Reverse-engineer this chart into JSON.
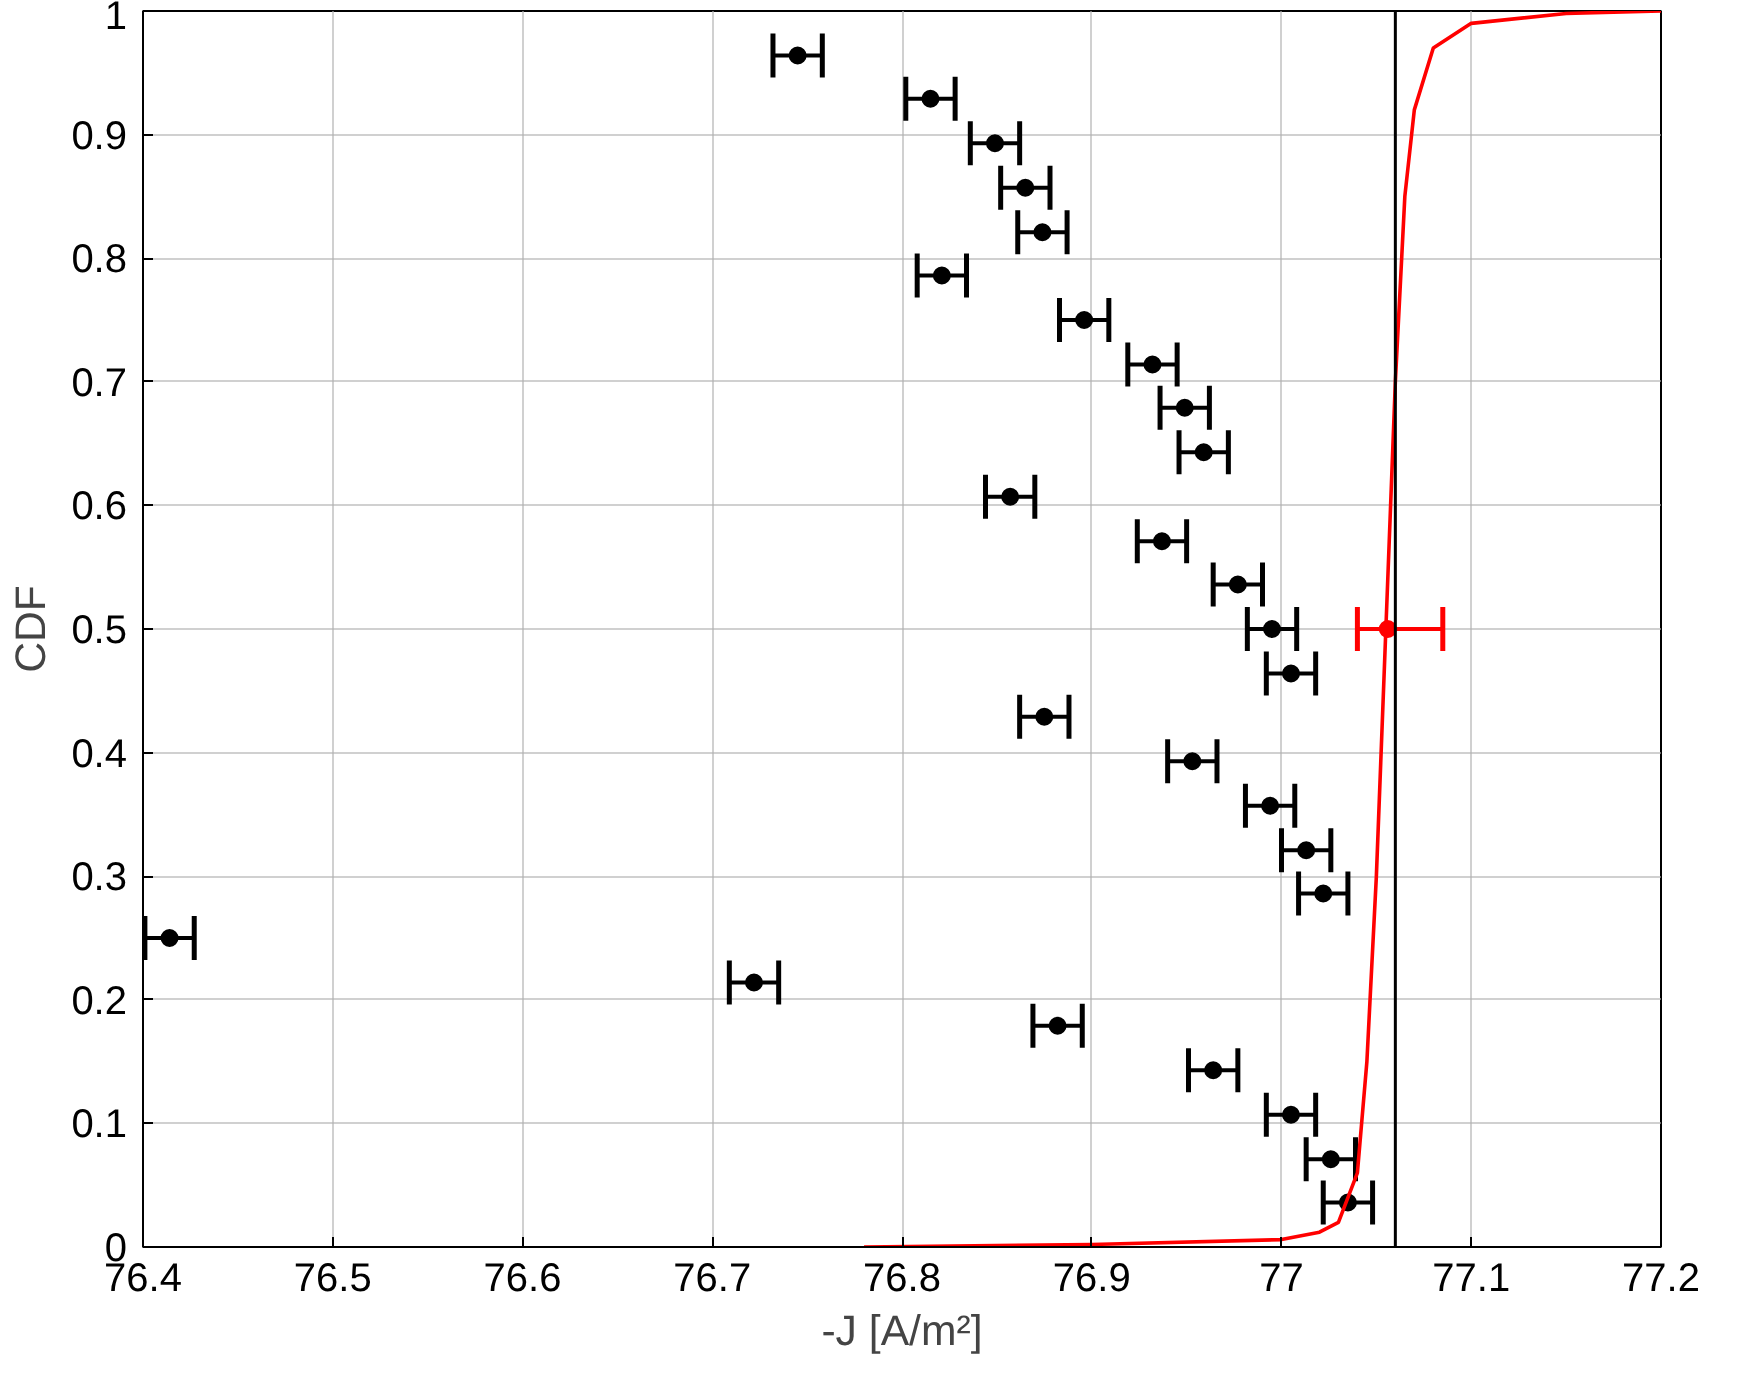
{
  "chart_data": {
    "type": "scatter",
    "xlabel": "-J [A/m²]",
    "ylabel": "CDF",
    "xlim": [
      76.4,
      77.2
    ],
    "ylim": [
      0,
      1
    ],
    "xticks": [
      76.4,
      76.5,
      76.6,
      76.7,
      76.8,
      76.9,
      77,
      77.1,
      77.2
    ],
    "yticks": [
      0,
      0.1,
      0.2,
      0.3,
      0.4,
      0.5,
      0.6,
      0.7,
      0.8,
      0.9,
      1
    ],
    "grid": true,
    "marker": "circle",
    "series": [
      {
        "color": "#000000",
        "x": [
          76.745,
          76.815,
          76.849,
          76.865,
          76.874,
          76.821,
          76.896,
          76.932,
          76.949,
          76.959,
          76.857,
          76.937,
          76.977,
          76.995,
          77.005,
          76.875,
          76.953,
          76.994,
          77.013,
          77.022,
          76.414,
          76.722,
          76.882,
          76.964,
          77.005,
          77.026,
          77.035
        ],
        "values": [
          0.964,
          0.929,
          0.893,
          0.857,
          0.821,
          0.786,
          0.75,
          0.714,
          0.679,
          0.643,
          0.607,
          0.571,
          0.536,
          0.5,
          0.464,
          0.429,
          0.393,
          0.357,
          0.321,
          0.286,
          0.25,
          0.214,
          0.179,
          0.143,
          0.107,
          0.071,
          0.036
        ],
        "xerrors": [
          0.013,
          0.013,
          0.013,
          0.013,
          0.013,
          0.013,
          0.013,
          0.013,
          0.013,
          0.013,
          0.013,
          0.013,
          0.013,
          0.013,
          0.013,
          0.013,
          0.013,
          0.013,
          0.013,
          0.013,
          0.013,
          0.013,
          0.013,
          0.013,
          0.013,
          0.013,
          0.013
        ]
      },
      {
        "type": "line",
        "marker": "none",
        "color": "#ff0000",
        "x": [
          76.78,
          76.9,
          77.0,
          77.02,
          77.03,
          77.04,
          77.045,
          77.05,
          77.055,
          77.06,
          77.065,
          77.07,
          77.08,
          77.1,
          77.15,
          77.2
        ],
        "values": [
          0,
          0.002,
          0.006,
          0.012,
          0.02,
          0.06,
          0.15,
          0.3,
          0.5,
          0.7,
          0.85,
          0.92,
          0.97,
          0.99,
          0.998,
          1.0
        ]
      },
      {
        "color": "#ff0000",
        "x": [
          77.056
        ],
        "values": [
          0.5
        ],
        "xerrors": [
          [
            77.04,
            77.085
          ]
        ]
      }
    ],
    "ref_lines": [
      {
        "axis": "x",
        "value": 77.06,
        "color": "#000000"
      }
    ]
  }
}
